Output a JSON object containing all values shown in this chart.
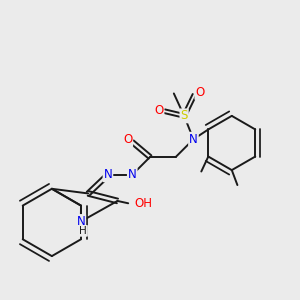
{
  "bg_color": "#ebebeb",
  "bond_color": "#1a1a1a",
  "bond_width": 1.4,
  "atom_colors": {
    "N": "#0000ee",
    "O": "#ff0000",
    "S": "#cccc00",
    "H": "#1a1a1a",
    "C": "#1a1a1a"
  },
  "font_size": 8.5,
  "fig_size": [
    3.0,
    3.0
  ],
  "dpi": 100
}
